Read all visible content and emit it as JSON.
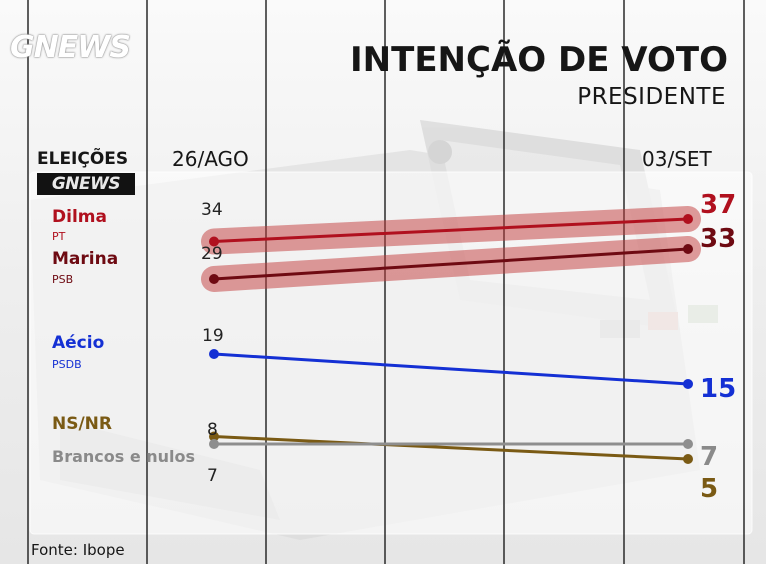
{
  "header": {
    "logo_text": "GNEWS",
    "title": "INTENÇÃO DE VOTO",
    "subtitle": "PRESIDENTE"
  },
  "legend_header": {
    "label": "ELEIÇÕES",
    "logo_text": "GNEWS"
  },
  "source": "Fonte: Ibope",
  "colors": {
    "dilma": "#b0101e",
    "marina": "#6e0a12",
    "aecio": "#1430d4",
    "nsnr": "#7a5a14",
    "brancos": "#8e8e8e",
    "highlight_band": "#c23a3a"
  },
  "chart_data": {
    "type": "line",
    "title": "INTENÇÃO DE VOTO",
    "subtitle": "PRESIDENTE",
    "categories": [
      "26/AGO",
      "03/SET"
    ],
    "series": [
      {
        "key": "dilma",
        "name": "Dilma",
        "party": "PT",
        "values": [
          34,
          37
        ],
        "highlight": true
      },
      {
        "key": "marina",
        "name": "Marina",
        "party": "PSB",
        "values": [
          29,
          33
        ],
        "highlight": true
      },
      {
        "key": "aecio",
        "name": "Aécio",
        "party": "PSDB",
        "values": [
          19,
          15
        ],
        "highlight": false
      },
      {
        "key": "nsnr",
        "name": "NS/NR",
        "party": "",
        "values": [
          8,
          5
        ],
        "highlight": false
      },
      {
        "key": "brancos",
        "name": "Brancos e nulos",
        "party": "",
        "values": [
          7,
          7
        ],
        "highlight": false
      }
    ],
    "grid": true,
    "legend_position": "left",
    "source": "Fonte: Ibope"
  }
}
